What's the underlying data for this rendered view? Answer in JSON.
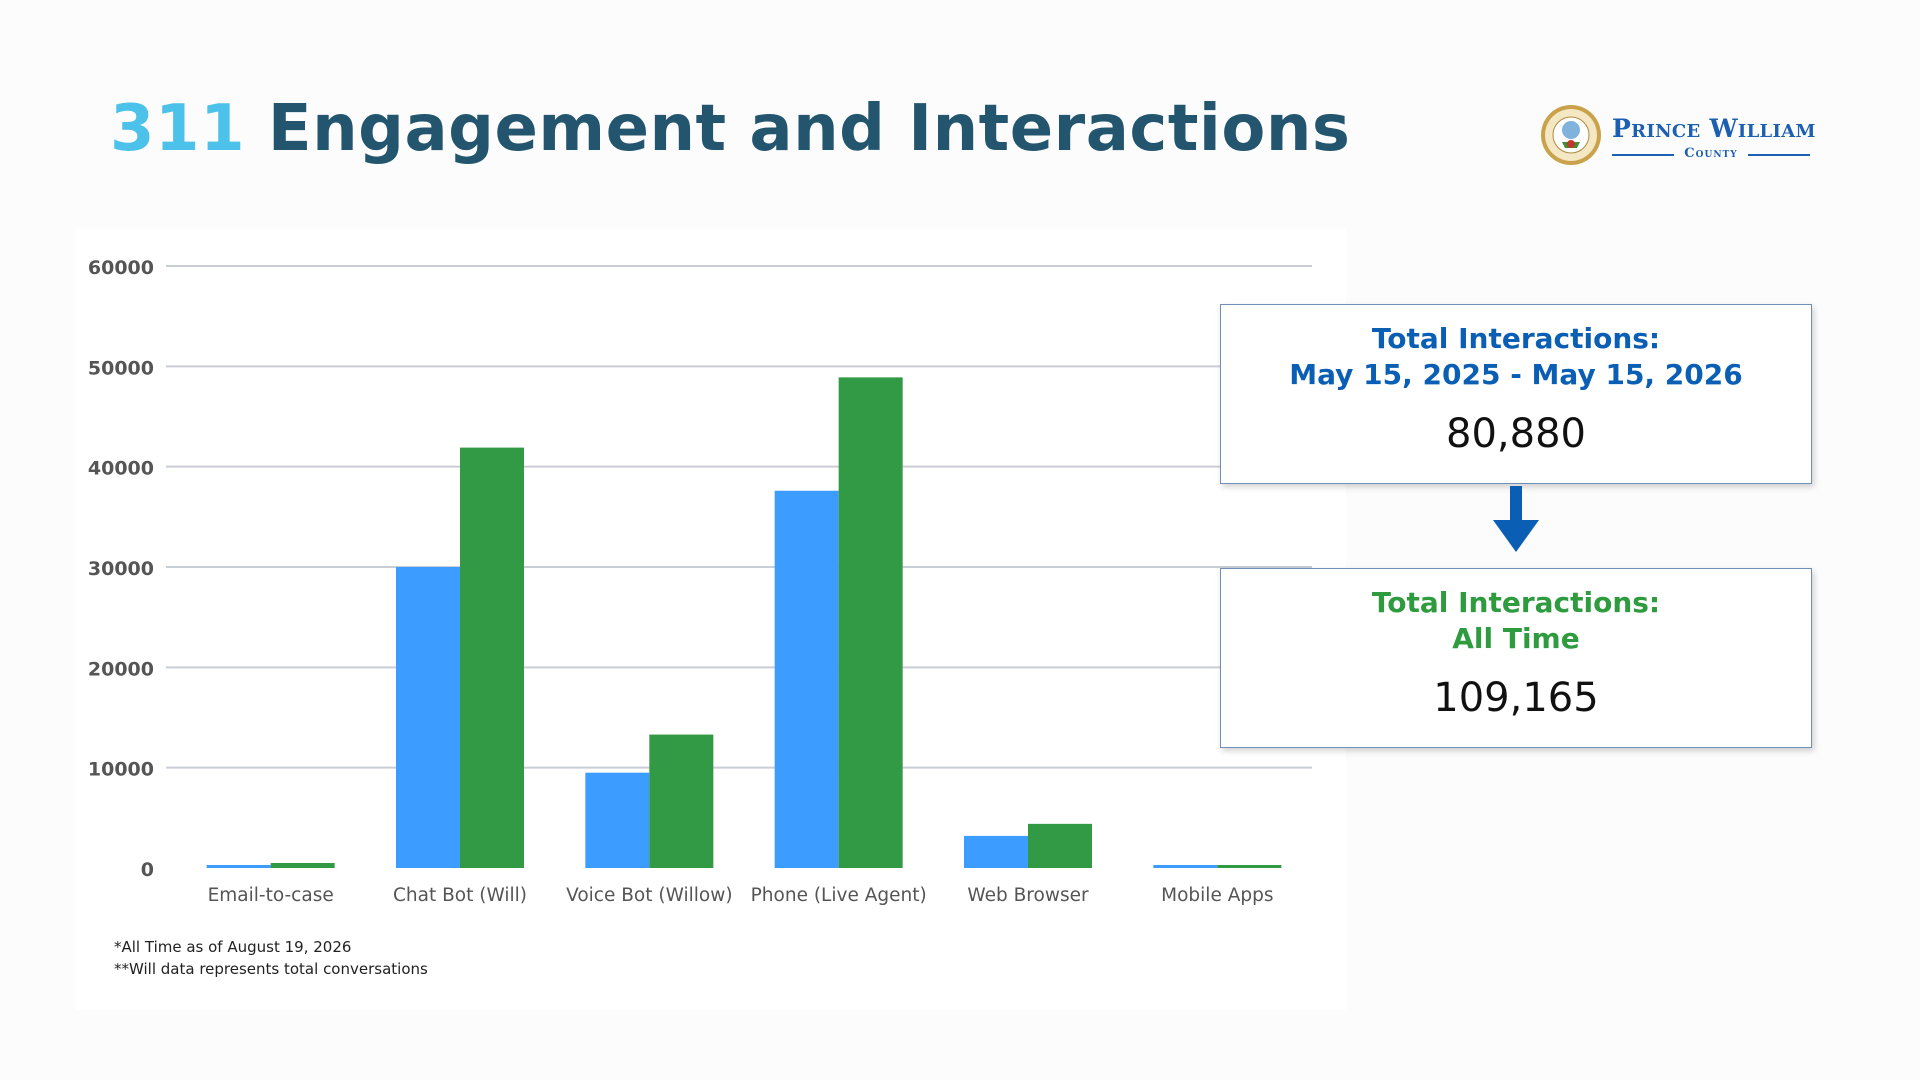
{
  "slide": {
    "title_number": "311",
    "title_rest": "Engagement and Interactions"
  },
  "logo": {
    "name": "Prince William",
    "county": "County"
  },
  "chart_data": {
    "type": "bar",
    "categories": [
      "Email-to-case",
      "Chat Bot (Will)",
      "Voice Bot (Willow)",
      "Phone (Live Agent)",
      "Web Browser",
      "Mobile Apps"
    ],
    "series": [
      {
        "values": [
          300,
          30000,
          9500,
          37600,
          3200,
          300
        ],
        "color": "#3d9cff"
      },
      {
        "values": [
          500,
          41900,
          13300,
          48900,
          4400,
          300
        ],
        "color": "#329a44"
      }
    ],
    "y_ticks": [
      "0",
      "10000",
      "20000",
      "30000",
      "40000",
      "50000",
      "60000"
    ],
    "ylim": [
      0,
      60000
    ],
    "grid": true,
    "title": "",
    "xlabel": "",
    "ylabel": ""
  },
  "notes": [
    "*All Time as of August 19, 2026",
    "**Will data represents total conversations"
  ],
  "stats": {
    "box1": {
      "label_line1": "Total Interactions:",
      "label_line2": "May 15, 2025 - May 15, 2026",
      "value": "80,880"
    },
    "box2": {
      "label_line1": "Total Interactions:",
      "label_line2": "All Time",
      "value": "109,165"
    }
  },
  "colors": {
    "title": "#23566e",
    "title_number": "#4cc2ea",
    "box1_label": "#0a5fb4",
    "box2_label": "#2e9b3f",
    "arrow": "#0a5fb4"
  }
}
